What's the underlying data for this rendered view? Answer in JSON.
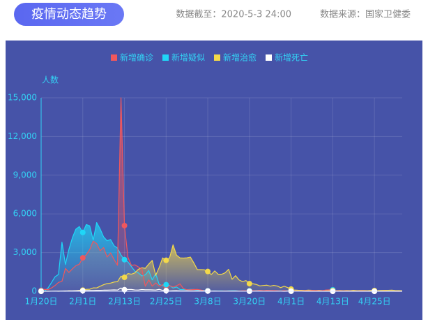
{
  "header": {
    "title": "疫情动态趋势",
    "updated": "数据截至：2020-5-3 24:00",
    "source": "数据来源：国家卫健委"
  },
  "chart_data": {
    "type": "line",
    "y_label": "人数",
    "legend": "top",
    "grid": true,
    "categories": [
      "1月20日",
      null,
      null,
      null,
      null,
      null,
      null,
      null,
      null,
      null,
      null,
      null,
      "2月1日",
      null,
      null,
      null,
      null,
      null,
      null,
      null,
      null,
      null,
      null,
      null,
      "2月13日",
      null,
      null,
      null,
      null,
      null,
      null,
      null,
      null,
      null,
      null,
      null,
      "2月25日",
      null,
      null,
      null,
      null,
      null,
      null,
      null,
      null,
      null,
      null,
      null,
      "3月8日",
      null,
      null,
      null,
      null,
      null,
      null,
      null,
      null,
      null,
      null,
      null,
      "3月20日",
      null,
      null,
      null,
      null,
      null,
      null,
      null,
      null,
      null,
      null,
      null,
      "4月1日",
      null,
      null,
      null,
      null,
      null,
      null,
      null,
      null,
      null,
      null,
      null,
      "4月13日",
      null,
      null,
      null,
      null,
      null,
      null,
      null,
      null,
      null,
      null,
      null,
      "4月25日",
      null,
      null,
      null,
      null,
      null,
      null,
      null,
      null
    ],
    "ylim": [
      0,
      15000
    ],
    "yticks": [
      0,
      {
        "value": 3000,
        "label": "3,000"
      },
      {
        "value": 6000,
        "label": "6,000"
      },
      {
        "value": 9000,
        "label": "9,000"
      },
      {
        "value": 12000,
        "label": "12,000"
      },
      {
        "value": 15000,
        "label": "15,000"
      }
    ],
    "series": [
      {
        "name": "新增确诊",
        "color": "#f0575d",
        "values": [
          77,
          149,
          131,
          259,
          444,
          688,
          769,
          1771,
          1459,
          1737,
          1982,
          2102,
          2590,
          2829,
          3235,
          3887,
          3694,
          3143,
          3385,
          2652,
          2973,
          2467,
          2015,
          15000,
          5090,
          2641,
          2009,
          2048,
          1886,
          1749,
          394,
          889,
          397,
          648,
          409,
          508,
          406,
          433,
          327,
          427,
          573,
          202,
          125,
          119,
          139,
          143,
          99,
          44,
          40,
          19,
          24,
          15,
          8,
          11,
          20,
          16,
          21,
          13,
          34,
          39,
          41,
          46,
          39,
          78,
          47,
          67,
          55,
          54,
          45,
          31,
          48,
          36,
          35,
          31,
          19,
          30,
          39,
          32,
          62,
          63,
          42,
          46,
          99,
          108,
          89,
          46,
          26,
          26,
          27,
          16,
          12,
          11,
          30,
          30,
          10,
          6,
          12,
          3,
          6,
          22,
          4,
          12,
          1,
          2,
          3
        ]
      },
      {
        "name": "新增疑似",
        "color": "#1fd6f7",
        "values": [
          27,
          26,
          257,
          680,
          1118,
          1309,
          3806,
          2077,
          3248,
          4148,
          4812,
          5019,
          4562,
          5173,
          5072,
          3971,
          5328,
          4833,
          4214,
          3916,
          4008,
          3536,
          3342,
          2807,
          2450,
          2277,
          1918,
          1563,
          1432,
          1185,
          1277,
          1614,
          882,
          1361,
          530,
          439,
          508,
          452,
          248,
          335,
          132,
          141,
          129,
          143,
          143,
          102,
          68,
          60,
          36,
          31,
          31,
          33,
          33,
          17,
          39,
          41,
          45,
          21,
          23,
          35,
          35,
          40,
          60,
          72,
          52,
          42,
          35,
          49,
          25,
          46,
          33,
          58,
          57,
          41,
          48,
          45,
          49,
          55,
          73,
          57,
          53,
          52,
          61,
          118,
          110,
          72,
          36,
          41,
          28,
          26,
          23,
          27,
          24,
          34,
          13,
          10,
          21,
          8,
          13,
          18,
          8,
          9,
          5,
          4,
          4
        ]
      },
      {
        "name": "新增治愈",
        "color": "#f3d94a",
        "values": [
          0,
          3,
          6,
          3,
          11,
          2,
          9,
          2,
          43,
          21,
          47,
          72,
          85,
          147,
          157,
          262,
          261,
          387,
          510,
          600,
          632,
          716,
          744,
          1171,
          1081,
          1373,
          1323,
          1425,
          1701,
          1824,
          1779,
          2109,
          2393,
          1231,
          1845,
          2589,
          2400,
          2600,
          3600,
          2800,
          2589,
          2575,
          2593,
          2652,
          2189,
          1681,
          1678,
          1664,
          1535,
          1297,
          1578,
          1318,
          1318,
          1430,
          1701,
          930,
          1208,
          881,
          749,
          830,
          590,
          583,
          527,
          417,
          451,
          472,
          395,
          458,
          408,
          282,
          389,
          287,
          166,
          93,
          80,
          78,
          66,
          90,
          73,
          60,
          76,
          58,
          72,
          53,
          49,
          57,
          64,
          52,
          64,
          50,
          76,
          49,
          65,
          59,
          51,
          68,
          52,
          58,
          71,
          74,
          78,
          91,
          65,
          58,
          43
        ]
      },
      {
        "name": "新增死亡",
        "color": "#ffffff",
        "values": [
          0,
          3,
          0,
          8,
          16,
          15,
          24,
          26,
          26,
          38,
          43,
          46,
          45,
          57,
          64,
          65,
          73,
          73,
          86,
          89,
          97,
          108,
          97,
          254,
          121,
          143,
          142,
          105,
          98,
          136,
          114,
          118,
          109,
          97,
          150,
          71,
          52,
          29,
          44,
          47,
          35,
          31,
          38,
          31,
          28,
          30,
          28,
          27,
          22,
          17,
          22,
          11,
          7,
          13,
          10,
          14,
          13,
          11,
          8,
          3,
          7,
          6,
          9,
          7,
          4,
          6,
          5,
          3,
          5,
          4,
          1,
          7,
          6,
          4,
          4,
          3,
          1,
          2,
          2,
          0,
          1,
          0,
          0,
          1,
          0,
          1,
          0,
          0,
          0,
          0,
          0,
          0,
          0,
          0,
          0,
          0,
          0,
          0,
          0,
          0,
          0,
          0,
          0,
          0,
          0
        ]
      }
    ]
  }
}
